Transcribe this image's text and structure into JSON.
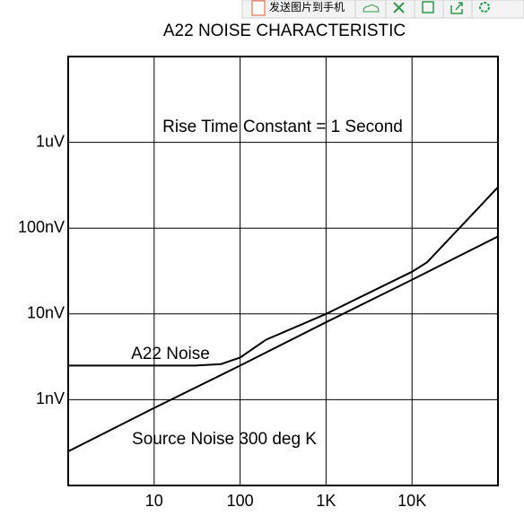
{
  "toolbar": {
    "send_label": "发送图片到手机"
  },
  "chart_data": {
    "type": "line",
    "title": "A22 NOISE CHARACTERISTIC",
    "x_log": true,
    "y_log": true,
    "grid": true,
    "xlim": [
      1,
      100000
    ],
    "xticks": [
      10,
      100,
      {
        "value": 1000,
        "label": "1K"
      },
      {
        "value": 10000,
        "label": "10K"
      }
    ],
    "ylim": [
      0.1,
      10000
    ],
    "yticks": [
      {
        "value": 1,
        "label": "1nV"
      },
      {
        "value": 10,
        "label": "10nV"
      },
      {
        "value": 100,
        "label": "100nV"
      },
      {
        "value": 1000,
        "label": "1uV"
      }
    ],
    "annotations": [
      "Rise Time Constant = 1 Second",
      "A22 Noise",
      "Source Noise 300 deg K"
    ],
    "series": [
      {
        "name": "A22 Noise",
        "color": "#000000",
        "x": [
          1,
          30,
          60,
          100,
          200,
          1000,
          10000,
          15000,
          100000
        ],
        "values": [
          2.5,
          2.5,
          2.6,
          3.1,
          5,
          10,
          31,
          40,
          300
        ]
      },
      {
        "name": "Source Noise 300 deg K",
        "color": "#000000",
        "x": [
          1,
          10,
          100,
          1000,
          10000,
          100000
        ],
        "values": [
          0.25,
          0.8,
          2.5,
          8,
          25,
          80
        ]
      }
    ]
  }
}
